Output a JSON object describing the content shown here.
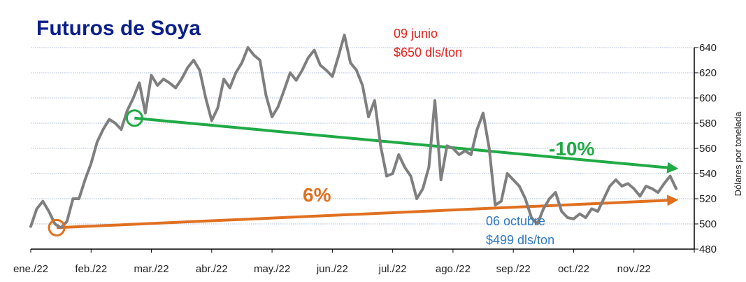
{
  "chart_data": {
    "type": "line",
    "title": "Futuros de Soya",
    "ylabel": "Dólares por tonelada",
    "ylim": [
      480,
      640
    ],
    "yticks": [
      480,
      500,
      520,
      540,
      560,
      580,
      600,
      620,
      640
    ],
    "grid": true,
    "categories": [
      "ene./22",
      "feb./22",
      "mar./22",
      "abr./22",
      "may./22",
      "jun./22",
      "jul./22",
      "ago./22",
      "sep./22",
      "oct./22",
      "nov./22"
    ],
    "series": [
      {
        "color": "#7f7f7f",
        "points": [
          [
            0,
            498
          ],
          [
            0.1,
            512
          ],
          [
            0.2,
            518
          ],
          [
            0.3,
            510
          ],
          [
            0.4,
            500
          ],
          [
            0.5,
            497
          ],
          [
            0.6,
            502
          ],
          [
            0.7,
            520
          ],
          [
            0.8,
            520
          ],
          [
            0.9,
            535
          ],
          [
            1.0,
            548
          ],
          [
            1.1,
            565
          ],
          [
            1.2,
            575
          ],
          [
            1.3,
            583
          ],
          [
            1.4,
            580
          ],
          [
            1.5,
            575
          ],
          [
            1.6,
            590
          ],
          [
            1.7,
            600
          ],
          [
            1.8,
            612
          ],
          [
            1.9,
            588
          ],
          [
            2.0,
            618
          ],
          [
            2.1,
            610
          ],
          [
            2.2,
            615
          ],
          [
            2.3,
            612
          ],
          [
            2.4,
            608
          ],
          [
            2.5,
            615
          ],
          [
            2.6,
            624
          ],
          [
            2.7,
            630
          ],
          [
            2.8,
            622
          ],
          [
            2.9,
            600
          ],
          [
            3.0,
            582
          ],
          [
            3.1,
            592
          ],
          [
            3.2,
            615
          ],
          [
            3.3,
            608
          ],
          [
            3.4,
            620
          ],
          [
            3.5,
            628
          ],
          [
            3.6,
            640
          ],
          [
            3.7,
            634
          ],
          [
            3.8,
            630
          ],
          [
            3.9,
            602
          ],
          [
            4.0,
            585
          ],
          [
            4.1,
            593
          ],
          [
            4.2,
            606
          ],
          [
            4.3,
            620
          ],
          [
            4.4,
            614
          ],
          [
            4.5,
            622
          ],
          [
            4.6,
            632
          ],
          [
            4.7,
            638
          ],
          [
            4.8,
            626
          ],
          [
            4.9,
            622
          ],
          [
            5.0,
            617
          ],
          [
            5.1,
            633
          ],
          [
            5.2,
            650
          ],
          [
            5.3,
            628
          ],
          [
            5.4,
            622
          ],
          [
            5.5,
            610
          ],
          [
            5.6,
            585
          ],
          [
            5.7,
            598
          ],
          [
            5.8,
            562
          ],
          [
            5.9,
            538
          ],
          [
            6.0,
            540
          ],
          [
            6.1,
            555
          ],
          [
            6.2,
            545
          ],
          [
            6.3,
            538
          ],
          [
            6.4,
            520
          ],
          [
            6.5,
            528
          ],
          [
            6.6,
            545
          ],
          [
            6.7,
            598
          ],
          [
            6.8,
            535
          ],
          [
            6.9,
            562
          ],
          [
            7.0,
            560
          ],
          [
            7.1,
            555
          ],
          [
            7.2,
            558
          ],
          [
            7.3,
            555
          ],
          [
            7.4,
            575
          ],
          [
            7.5,
            588
          ],
          [
            7.6,
            560
          ],
          [
            7.7,
            515
          ],
          [
            7.8,
            518
          ],
          [
            7.9,
            540
          ],
          [
            8.0,
            535
          ],
          [
            8.1,
            530
          ],
          [
            8.2,
            520
          ],
          [
            8.3,
            505
          ],
          [
            8.4,
            500
          ],
          [
            8.5,
            512
          ],
          [
            8.6,
            520
          ],
          [
            8.7,
            525
          ],
          [
            8.8,
            510
          ],
          [
            8.9,
            505
          ],
          [
            9.0,
            504
          ],
          [
            9.1,
            508
          ],
          [
            9.2,
            505
          ],
          [
            9.3,
            512
          ],
          [
            9.4,
            510
          ],
          [
            9.5,
            520
          ],
          [
            9.6,
            530
          ],
          [
            9.7,
            535
          ],
          [
            9.8,
            530
          ],
          [
            9.9,
            532
          ],
          [
            10.0,
            528
          ],
          [
            10.1,
            522
          ],
          [
            10.2,
            530
          ],
          [
            10.3,
            528
          ],
          [
            10.4,
            525
          ],
          [
            10.5,
            532
          ],
          [
            10.6,
            538
          ],
          [
            10.7,
            528
          ]
        ]
      }
    ],
    "annotations": [
      {
        "text": "09 junio",
        "color": "#e8211c"
      },
      {
        "text": "$650 dls/ton",
        "color": "#e8211c"
      },
      {
        "text": "06 octubre",
        "color": "#2e78c4"
      },
      {
        "text": "$499 dls/ton",
        "color": "#2e78c4"
      },
      {
        "text": "-10%",
        "color": "#1faa45"
      },
      {
        "text": "6%",
        "color": "#e07020"
      }
    ],
    "trendlines": [
      {
        "color": "#1faa45",
        "from": [
          1.72,
          584
        ],
        "to": [
          10.7,
          544
        ]
      },
      {
        "color": "#e07020",
        "from": [
          0.43,
          497
        ],
        "to": [
          10.7,
          519
        ]
      }
    ]
  }
}
